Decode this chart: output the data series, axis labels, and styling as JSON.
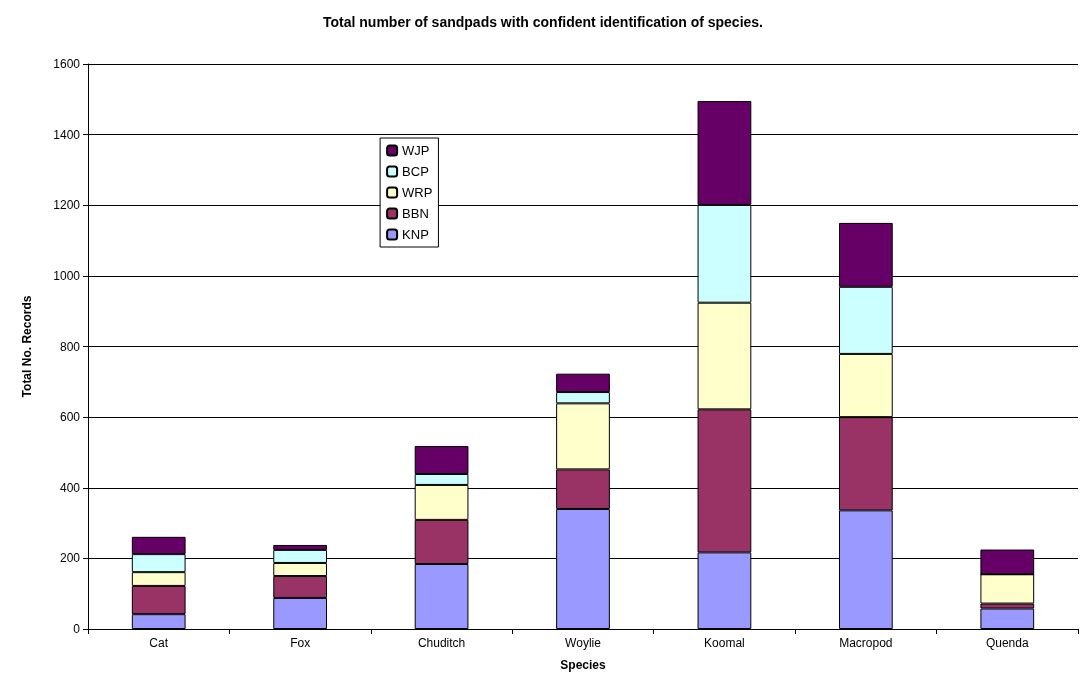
{
  "chart_data": {
    "type": "bar",
    "title": "Total number of sandpads with confident identification of species.",
    "xlabel": "Species",
    "ylabel": "Total No. Records",
    "categories": [
      "Cat",
      "Fox",
      "Chuditch",
      "Woylie",
      "Koomal",
      "Macropod",
      "Quenda"
    ],
    "stacked": true,
    "ylim": [
      0,
      1600
    ],
    "yticks": [
      0,
      200,
      400,
      600,
      800,
      1000,
      1200,
      1400,
      1600
    ],
    "grid": "y",
    "legend": "top left",
    "series": [
      {
        "name": "KNP",
        "color": "#9999ff",
        "values": [
          42,
          88,
          184,
          340,
          217,
          336,
          58
        ]
      },
      {
        "name": "BBN",
        "color": "#993366",
        "values": [
          80,
          62,
          125,
          112,
          405,
          264,
          14
        ]
      },
      {
        "name": "WRP",
        "color": "#ffffcc",
        "values": [
          39,
          37,
          99,
          187,
          302,
          179,
          83
        ]
      },
      {
        "name": "BCP",
        "color": "#ccffff",
        "values": [
          51,
          37,
          31,
          32,
          277,
          190,
          0
        ]
      },
      {
        "name": "WJP",
        "color": "#660066",
        "values": [
          49,
          14,
          79,
          52,
          294,
          181,
          70
        ]
      }
    ]
  }
}
